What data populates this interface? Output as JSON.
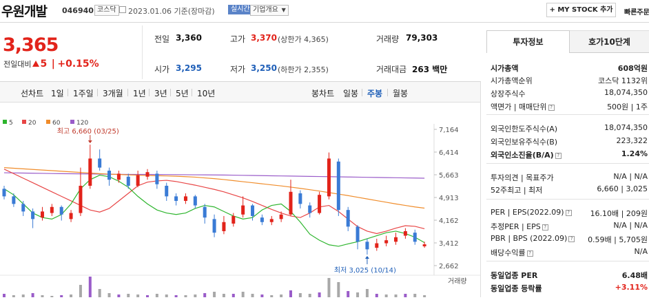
{
  "header": {
    "title": "우원개발",
    "code": "046940",
    "market": "코스닥",
    "date": "2023.01.06",
    "date_suffix": "기준(장마감)",
    "live_badge": "실시간",
    "company_dropdown": "기업개요",
    "my_stock_button": "+ MY STOCK 추가",
    "quick_button": "빠른주문"
  },
  "summary": {
    "price": "3,365",
    "change_label": "전일대비",
    "change_abs": "5",
    "change_pct": "+0.15%",
    "prev_close_label": "전일",
    "prev_close": "3,360",
    "high_label": "고가",
    "high": "3,370",
    "upper_limit": "(상한가 4,365)",
    "volume_label": "거래량",
    "volume": "79,303",
    "open_label": "시가",
    "open": "3,295",
    "low_label": "저가",
    "low": "3,250",
    "lower_limit": "(하한가 2,355)",
    "amount_label": "거래대금",
    "amount": "263",
    "amount_unit": "백만"
  },
  "chart_tabs": {
    "line_label": "선차트",
    "periods": [
      "1일",
      "1주일",
      "3개월",
      "1년",
      "3년",
      "5년",
      "10년"
    ],
    "candle_label": "봉차트",
    "candle_periods": [
      "일봉",
      "주봉",
      "월봉"
    ],
    "active_candle": "주봉"
  },
  "chart_data": {
    "type": "candlestick",
    "title": "",
    "legend": [
      {
        "name": "5",
        "color": "#2db52d"
      },
      {
        "name": "20",
        "color": "#e84545"
      },
      {
        "name": "60",
        "color": "#f08c2a"
      },
      {
        "name": "120",
        "color": "#9a5cc9"
      }
    ],
    "y_ticks": [
      7164,
      6414,
      5663,
      4913,
      4162,
      3412,
      2662
    ],
    "y_tick_labels": [
      "7,164",
      "6,414",
      "5,663",
      "4,913",
      "4,162",
      "3,412",
      "2,662"
    ],
    "ylim": [
      2662,
      7164
    ],
    "annotations": {
      "high": {
        "value": 6660,
        "date": "03/25",
        "text": "최고 6,660 (03/25)"
      },
      "low": {
        "value": 3025,
        "date": "10/14",
        "text": "최저 3,025 (10/14)"
      }
    },
    "volume_label": "거래량",
    "ma120": [
      5730,
      5725,
      5720,
      5715,
      5710,
      5705,
      5700,
      5698,
      5695,
      5690,
      5685,
      5680,
      5678,
      5675,
      5675,
      5675,
      5672,
      5670,
      5668,
      5665,
      5662,
      5660,
      5658,
      5655,
      5650,
      5645,
      5640,
      5635,
      5630,
      5625,
      5620,
      5615,
      5610,
      5605,
      5600,
      5595,
      5590,
      5585,
      5580,
      5575,
      5570,
      5565,
      5560,
      5555,
      5550
    ],
    "ma60": [
      5900,
      5880,
      5860,
      5840,
      5820,
      5800,
      5780,
      5760,
      5740,
      5720,
      5700,
      5685,
      5672,
      5660,
      5650,
      5640,
      5632,
      5625,
      5615,
      5600,
      5585,
      5560,
      5535,
      5505,
      5470,
      5435,
      5400,
      5365,
      5330,
      5295,
      5255,
      5215,
      5170,
      5125,
      5075,
      5025,
      4975,
      4920,
      4865,
      4810,
      4755,
      4700,
      4650,
      4600,
      4560
    ],
    "ma20": [
      5850,
      5700,
      5550,
      5400,
      5250,
      5100,
      4950,
      4800,
      4650,
      4500,
      4430,
      4550,
      4800,
      5050,
      5300,
      5420,
      5460,
      5480,
      5440,
      5380,
      5320,
      5250,
      5180,
      5100,
      5000,
      4900,
      4780,
      4650,
      4520,
      4400,
      4300,
      4250,
      4400,
      4600,
      4650,
      4450,
      4200,
      3950,
      3800,
      3720,
      3800,
      3900,
      3980,
      3960,
      3880
    ],
    "ma5": [
      5200,
      5000,
      4700,
      4400,
      4250,
      4200,
      4350,
      4700,
      5200,
      5500,
      5650,
      5600,
      5450,
      5250,
      4950,
      4700,
      4500,
      4400,
      4350,
      4400,
      4550,
      4650,
      4600,
      4450,
      4300,
      4200,
      4250,
      4500,
      4650,
      4700,
      4450,
      4100,
      3700,
      3500,
      3350,
      3300,
      3380,
      3450,
      3550,
      3650,
      3750,
      3800,
      3720,
      3600,
      3420
    ],
    "candles": [
      {
        "o": 5200,
        "c": 4950,
        "h": 5300,
        "l": 4850
      },
      {
        "o": 4950,
        "c": 4700,
        "h": 5050,
        "l": 4600
      },
      {
        "o": 4700,
        "c": 4450,
        "h": 4800,
        "l": 4300
      },
      {
        "o": 4450,
        "c": 4200,
        "h": 4550,
        "l": 3900
      },
      {
        "o": 4250,
        "c": 4450,
        "h": 4600,
        "l": 4150
      },
      {
        "o": 4400,
        "c": 4600,
        "h": 4700,
        "l": 4300
      },
      {
        "o": 4600,
        "c": 4350,
        "h": 4650,
        "l": 4150
      },
      {
        "o": 4200,
        "c": 4400,
        "h": 4500,
        "l": 4100
      },
      {
        "o": 4400,
        "c": 5300,
        "h": 5900,
        "l": 4300
      },
      {
        "o": 5300,
        "c": 6200,
        "h": 6660,
        "l": 5200
      },
      {
        "o": 6200,
        "c": 5900,
        "h": 6500,
        "l": 5800
      },
      {
        "o": 5800,
        "c": 5500,
        "h": 5900,
        "l": 5300
      },
      {
        "o": 5500,
        "c": 5700,
        "h": 5800,
        "l": 5400
      },
      {
        "o": 5600,
        "c": 5300,
        "h": 5700,
        "l": 5200
      },
      {
        "o": 5300,
        "c": 5650,
        "h": 5800,
        "l": 5250
      },
      {
        "o": 5600,
        "c": 5750,
        "h": 5850,
        "l": 5500
      },
      {
        "o": 5700,
        "c": 5350,
        "h": 5800,
        "l": 5200
      },
      {
        "o": 5300,
        "c": 4950,
        "h": 5400,
        "l": 4800
      },
      {
        "o": 4950,
        "c": 4800,
        "h": 5050,
        "l": 4650
      },
      {
        "o": 4800,
        "c": 4950,
        "h": 5050,
        "l": 4700
      },
      {
        "o": 4950,
        "c": 4650,
        "h": 5000,
        "l": 4550
      },
      {
        "o": 4600,
        "c": 4250,
        "h": 4700,
        "l": 4050
      },
      {
        "o": 4200,
        "c": 3750,
        "h": 4350,
        "l": 3600
      },
      {
        "o": 3800,
        "c": 4100,
        "h": 4300,
        "l": 3700
      },
      {
        "o": 4050,
        "c": 4300,
        "h": 4400,
        "l": 3950
      },
      {
        "o": 4350,
        "c": 4650,
        "h": 4950,
        "l": 4250
      },
      {
        "o": 4650,
        "c": 4300,
        "h": 4700,
        "l": 4150
      },
      {
        "o": 4250,
        "c": 4100,
        "h": 4350,
        "l": 4000
      },
      {
        "o": 4100,
        "c": 4200,
        "h": 4300,
        "l": 4000
      },
      {
        "o": 4200,
        "c": 4350,
        "h": 4450,
        "l": 4100
      },
      {
        "o": 4350,
        "c": 5100,
        "h": 5500,
        "l": 4300
      },
      {
        "o": 5050,
        "c": 4700,
        "h": 5150,
        "l": 4550
      },
      {
        "o": 4650,
        "c": 4400,
        "h": 4750,
        "l": 4250
      },
      {
        "o": 4400,
        "c": 5000,
        "h": 5100,
        "l": 4350
      },
      {
        "o": 4950,
        "c": 6200,
        "h": 6400,
        "l": 4850
      },
      {
        "o": 6100,
        "c": 4500,
        "h": 6200,
        "l": 4300
      },
      {
        "o": 4500,
        "c": 3950,
        "h": 4600,
        "l": 3800
      },
      {
        "o": 3950,
        "c": 3450,
        "h": 4000,
        "l": 3200
      },
      {
        "o": 3450,
        "c": 3200,
        "h": 3550,
        "l": 3025
      },
      {
        "o": 3250,
        "c": 3400,
        "h": 3550,
        "l": 3150
      },
      {
        "o": 3400,
        "c": 3500,
        "h": 3650,
        "l": 3300
      },
      {
        "o": 3450,
        "c": 3600,
        "h": 3750,
        "l": 3350
      },
      {
        "o": 3650,
        "c": 3800,
        "h": 3900,
        "l": 3550
      },
      {
        "o": 3750,
        "c": 3450,
        "h": 3850,
        "l": 3350
      },
      {
        "o": 3300,
        "c": 3365,
        "h": 3450,
        "l": 3250
      }
    ],
    "volume": [
      5,
      3,
      4,
      6,
      3,
      2,
      3,
      4,
      18,
      30,
      12,
      6,
      4,
      5,
      4,
      3,
      5,
      4,
      3,
      3,
      4,
      6,
      8,
      5,
      5,
      8,
      5,
      4,
      3,
      4,
      10,
      6,
      5,
      7,
      28,
      22,
      9,
      7,
      12,
      5,
      4,
      4,
      5,
      5,
      3
    ]
  },
  "panel": {
    "tab_active": "투자정보",
    "tab_inactive": "호가10단계",
    "rows": [
      {
        "label": "시가총액",
        "value": "608억원"
      },
      {
        "label": "시가총액순위",
        "value": "코스닥 1132위"
      },
      {
        "label": "상장주식수",
        "value": "18,074,350"
      },
      {
        "label": "액면가 | 매매단위",
        "value": "500원 | 1주"
      },
      {
        "label": "외국인한도주식수(A)",
        "value": "18,074,350"
      },
      {
        "label": "외국인보유주식수(B)",
        "value": "223,322"
      },
      {
        "label": "외국인소진율(B/A)",
        "value": "1.24%"
      },
      {
        "label": "투자의견 | 목표주가",
        "value": "N/A | N/A"
      },
      {
        "label": "52주최고 | 최저",
        "value": "6,660 | 3,025"
      },
      {
        "label": "PER | EPS(2022.09)",
        "value": "16.10배 | 209원"
      },
      {
        "label": "추정PER | EPS",
        "value": "N/A | N/A"
      },
      {
        "label": "PBR | BPS (2022.09)",
        "value": "0.59배 | 5,705원"
      },
      {
        "label": "배당수익률",
        "value": "N/A"
      },
      {
        "label": "동일업종 PER",
        "value": "6.48배"
      },
      {
        "label": "동일업종 등락률",
        "value": "+3.11%"
      }
    ]
  }
}
